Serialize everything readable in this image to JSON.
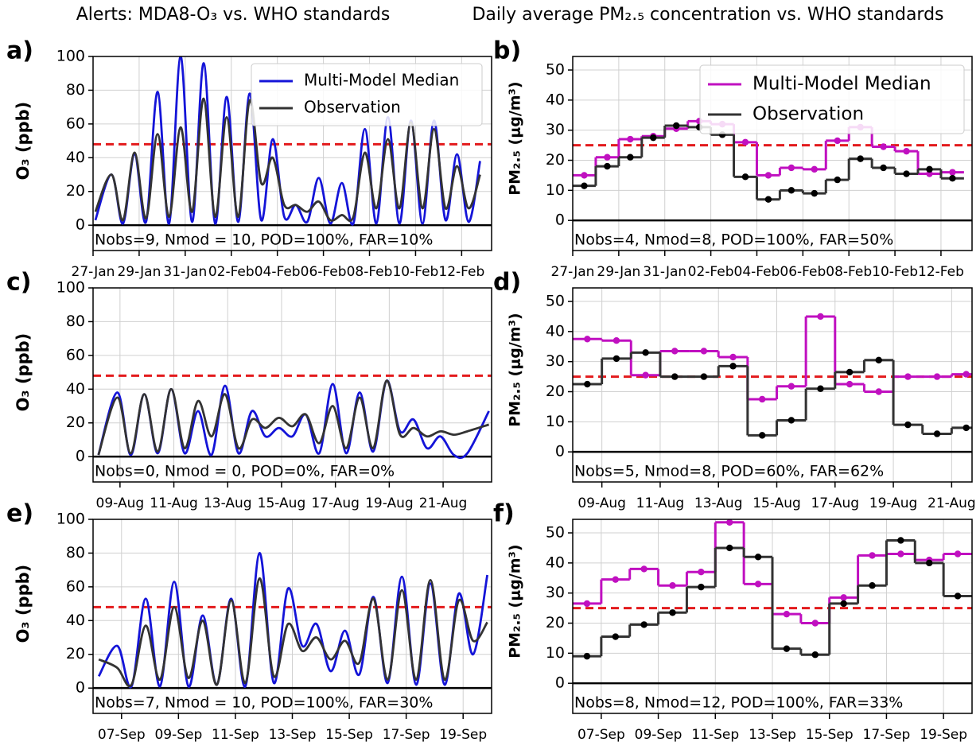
{
  "headers": [
    "Alerts: MDA8-O₃ vs. WHO standards",
    "Daily average PM₂.₅ concentration vs. WHO standards"
  ],
  "chart_data": [
    {
      "type": "line",
      "label": "a)",
      "ylabel": "O₃ (ppb)",
      "annotation": "Nobs=9, Nmod = 10, POD=100%, FAR=10%",
      "x": [
        0.1,
        0.8,
        1.3,
        1.8,
        2.3,
        2.8,
        3.3,
        3.8,
        4.3,
        4.8,
        5.3,
        5.8,
        6.3,
        6.8,
        7.3,
        7.8,
        8.3,
        8.8,
        9.3,
        9.8,
        10.3,
        10.8,
        11.3,
        11.8,
        12.3,
        12.8,
        13.3,
        13.8,
        14.3,
        14.8,
        15.3,
        15.8,
        16.3,
        16.8
      ],
      "series": [
        {
          "name": "Multi-Model Median",
          "color": "#1414d8",
          "values": [
            3,
            30,
            1,
            42,
            2,
            79,
            1,
            100,
            2,
            96,
            1,
            76,
            2,
            78,
            3,
            51,
            5,
            12,
            2,
            28,
            1,
            25,
            1,
            57,
            1,
            64,
            1,
            62,
            1,
            62,
            3,
            42,
            2,
            38
          ]
        },
        {
          "name": "Observation",
          "color": "#333333",
          "values": [
            8,
            30,
            3,
            43,
            4,
            54,
            5,
            58,
            8,
            75,
            5,
            64,
            5,
            74,
            25,
            40,
            12,
            12,
            8,
            14,
            3,
            6,
            5,
            43,
            10,
            51,
            10,
            61,
            10,
            57,
            10,
            35,
            10,
            30
          ]
        }
      ],
      "xlim": [
        0,
        17.3
      ],
      "ylim": [
        -15,
        100
      ],
      "xticks": [
        {
          "value": 0,
          "label": "27-Jan"
        },
        {
          "value": 2,
          "label": "29-Jan"
        },
        {
          "value": 4,
          "label": "31-Jan"
        },
        {
          "value": 6,
          "label": "02-Feb"
        },
        {
          "value": 8,
          "label": "04-Feb"
        },
        {
          "value": 10,
          "label": "06-Feb"
        },
        {
          "value": 12,
          "label": "08-Feb"
        },
        {
          "value": 14,
          "label": "10-Feb"
        },
        {
          "value": 16,
          "label": "12-Feb"
        }
      ],
      "yticks": [
        0,
        20,
        40,
        60,
        80,
        100
      ],
      "threshold": 48,
      "grid": true,
      "legend": "upper right"
    },
    {
      "type": "step",
      "label": "b)",
      "ylabel": "PM₂.₅ (μg/m³)",
      "annotation": "Nobs=4, Nmod=8, POD=100%, FAR=50%",
      "x": [
        0.5,
        1.5,
        2.5,
        3.5,
        4.5,
        5.5,
        6.5,
        7.5,
        8.5,
        9.5,
        10.5,
        11.5,
        12.5,
        13.5,
        14.5,
        15.5,
        16.5
      ],
      "series": [
        {
          "name": "Multi-Model Median",
          "color": "#c010c0",
          "values": [
            15,
            21,
            27,
            28,
            30.5,
            33,
            32,
            26,
            15,
            17.5,
            17,
            26.5,
            31,
            24.5,
            23,
            15.5,
            16
          ]
        },
        {
          "name": "Observation",
          "color": "#333333",
          "values": [
            11.5,
            18,
            21,
            27.5,
            31.5,
            31,
            28.5,
            14.5,
            7,
            10,
            9,
            13.5,
            20.5,
            17.5,
            15.5,
            17,
            14
          ]
        }
      ],
      "xlim": [
        0,
        17.35
      ],
      "ylim": [
        -10,
        54.5
      ],
      "xticks": [
        {
          "value": 0,
          "label": "27-Jan"
        },
        {
          "value": 2,
          "label": "29-Jan"
        },
        {
          "value": 4,
          "label": "31-Jan"
        },
        {
          "value": 6,
          "label": "02-Feb"
        },
        {
          "value": 8,
          "label": "04-Feb"
        },
        {
          "value": 10,
          "label": "06-Feb"
        },
        {
          "value": 12,
          "label": "08-Feb"
        },
        {
          "value": 14,
          "label": "10-Feb"
        },
        {
          "value": 16,
          "label": "12-Feb"
        }
      ],
      "yticks": [
        0,
        10,
        20,
        30,
        40,
        50
      ],
      "threshold": 25,
      "grid": true,
      "legend": "upper right"
    },
    {
      "type": "line",
      "label": "c)",
      "ylabel": "O₃ (ppb)",
      "annotation": "Nobs=0, Nmod = 0, POD=0%, FAR=0%",
      "x": [
        0.2,
        0.9,
        1.4,
        1.9,
        2.4,
        2.9,
        3.4,
        3.9,
        4.4,
        4.9,
        5.4,
        5.9,
        6.4,
        6.9,
        7.4,
        7.9,
        8.4,
        8.9,
        9.4,
        9.9,
        10.4,
        10.9,
        11.4,
        11.9,
        12.4,
        12.9,
        13.4,
        13.9,
        14.7
      ],
      "series": [
        {
          "color": "#1414d8",
          "values": [
            1,
            38,
            1,
            37,
            2,
            40,
            2,
            27,
            1,
            42,
            2,
            27,
            12,
            17,
            12,
            25,
            2,
            43,
            2,
            38,
            3,
            45,
            15,
            22,
            5,
            12,
            1,
            2,
            27
          ]
        },
        {
          "color": "#333333",
          "values": [
            1,
            35,
            2,
            37,
            3,
            40,
            5,
            33,
            12,
            37,
            5,
            22,
            17,
            23,
            18,
            25,
            8,
            30,
            5,
            35,
            5,
            45,
            13,
            17,
            12,
            15,
            13,
            15,
            19
          ]
        }
      ],
      "xlim": [
        0,
        14.8
      ],
      "ylim": [
        -15,
        100
      ],
      "xticks": [
        {
          "value": 1,
          "label": "09-Aug"
        },
        {
          "value": 3,
          "label": "11-Aug"
        },
        {
          "value": 5,
          "label": "13-Aug"
        },
        {
          "value": 7,
          "label": "15-Aug"
        },
        {
          "value": 9,
          "label": "17-Aug"
        },
        {
          "value": 11,
          "label": "19-Aug"
        },
        {
          "value": 13,
          "label": "21-Aug"
        }
      ],
      "yticks": [
        0,
        20,
        40,
        60,
        80,
        100
      ],
      "threshold": 48,
      "grid": true
    },
    {
      "type": "step",
      "label": "d)",
      "ylabel": "PM₂.₅ (μg/m³)",
      "annotation": "Nobs=5, Nmod=8, POD=60%, FAR=62%",
      "x": [
        0.5,
        1.5,
        2.5,
        3.5,
        4.5,
        5.5,
        6.5,
        7.5,
        8.5,
        9.5,
        10.5,
        11.5,
        12.5,
        13.5
      ],
      "series": [
        {
          "color": "#c010c0",
          "values": [
            37.5,
            37,
            25.5,
            33.5,
            33.5,
            31.5,
            17.5,
            21.8,
            45,
            22.5,
            20,
            25,
            25,
            25.8
          ]
        },
        {
          "color": "#333333",
          "values": [
            22.5,
            31,
            33,
            25,
            25,
            28.5,
            5.5,
            10.5,
            21,
            26.5,
            30.5,
            9,
            6,
            8
          ]
        }
      ],
      "xlim": [
        0,
        13.7
      ],
      "ylim": [
        -10,
        54.5
      ],
      "xticks": [
        {
          "value": 1,
          "label": "09-Aug"
        },
        {
          "value": 3,
          "label": "11-Aug"
        },
        {
          "value": 5,
          "label": "13-Aug"
        },
        {
          "value": 7,
          "label": "15-Aug"
        },
        {
          "value": 9,
          "label": "17-Aug"
        },
        {
          "value": 11,
          "label": "19-Aug"
        },
        {
          "value": 13,
          "label": "21-Aug"
        }
      ],
      "yticks": [
        0,
        10,
        20,
        30,
        40,
        50
      ],
      "threshold": 25,
      "grid": true
    },
    {
      "type": "line",
      "label": "e)",
      "ylabel": "O₃ (ppb)",
      "annotation": "Nobs=7, Nmod = 10, POD=100%, FAR=30%",
      "x": [
        0.2,
        0.85,
        1.35,
        1.85,
        2.35,
        2.85,
        3.35,
        3.85,
        4.35,
        4.85,
        5.35,
        5.85,
        6.35,
        6.85,
        7.35,
        7.85,
        8.35,
        8.85,
        9.35,
        9.85,
        10.35,
        10.85,
        11.35,
        11.85,
        12.35,
        12.85,
        13.35,
        13.85
      ],
      "series": [
        {
          "color": "#1414d8",
          "values": [
            7,
            25,
            1,
            53,
            1,
            63,
            1,
            43,
            2,
            53,
            1,
            80,
            3,
            59,
            25,
            38,
            10,
            34,
            8,
            54,
            3,
            66,
            2,
            62,
            2,
            56,
            20,
            67
          ]
        },
        {
          "color": "#333333",
          "values": [
            17,
            12,
            2,
            37,
            5,
            48,
            6,
            40,
            2,
            52,
            3,
            65,
            7,
            38,
            22,
            30,
            17,
            28,
            15,
            53,
            5,
            58,
            5,
            64,
            5,
            52,
            28,
            39
          ]
        }
      ],
      "xlim": [
        0,
        14.0
      ],
      "ylim": [
        -15,
        100
      ],
      "xticks": [
        {
          "value": 1,
          "label": "07-Sep"
        },
        {
          "value": 3,
          "label": "09-Sep"
        },
        {
          "value": 5,
          "label": "11-Sep"
        },
        {
          "value": 7,
          "label": "13-Sep"
        },
        {
          "value": 9,
          "label": "15-Sep"
        },
        {
          "value": 11,
          "label": "17-Sep"
        },
        {
          "value": 13,
          "label": "19-Sep"
        }
      ],
      "yticks": [
        0,
        20,
        40,
        60,
        80,
        100
      ],
      "threshold": 48,
      "grid": true
    },
    {
      "type": "step",
      "label": "f)",
      "ylabel": "PM₂.₅ (μg/m³)",
      "annotation": "Nobs=8, Nmod=12, POD=100%, FAR=33%",
      "x": [
        0.5,
        1.5,
        2.5,
        3.5,
        4.5,
        5.5,
        6.5,
        7.5,
        8.5,
        9.5,
        10.5,
        11.5,
        12.5,
        13.5
      ],
      "series": [
        {
          "color": "#c010c0",
          "values": [
            26.5,
            34.5,
            38,
            32.5,
            37,
            53.5,
            33,
            23,
            20,
            28.5,
            42.5,
            43,
            41,
            43
          ]
        },
        {
          "color": "#333333",
          "values": [
            9,
            15.5,
            19.5,
            23.5,
            32,
            45,
            42,
            11.5,
            9.5,
            26.5,
            32.5,
            47.5,
            40,
            29
          ]
        }
      ],
      "xlim": [
        0,
        14.0
      ],
      "ylim": [
        -10,
        54.5
      ],
      "xticks": [
        {
          "value": 1,
          "label": "07-Sep"
        },
        {
          "value": 3,
          "label": "09-Sep"
        },
        {
          "value": 5,
          "label": "11-Sep"
        },
        {
          "value": 7,
          "label": "13-Sep"
        },
        {
          "value": 9,
          "label": "15-Sep"
        },
        {
          "value": 11,
          "label": "17-Sep"
        },
        {
          "value": 13,
          "label": "19-Sep"
        }
      ],
      "yticks": [
        0,
        10,
        20,
        30,
        40,
        50
      ],
      "threshold": 25,
      "grid": true
    }
  ]
}
